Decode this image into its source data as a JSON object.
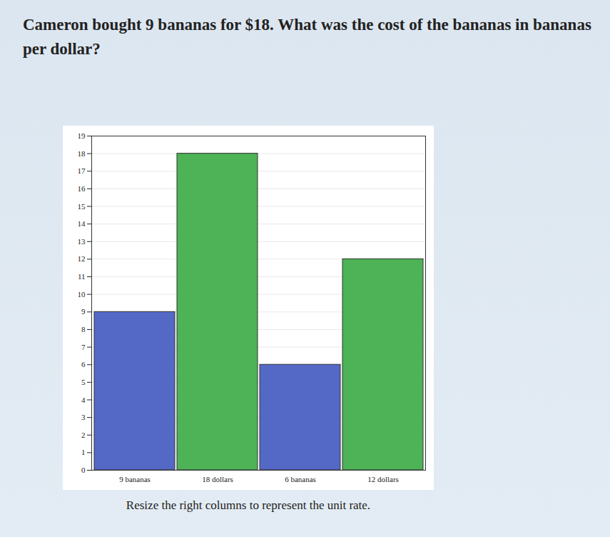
{
  "chart_data": {
    "type": "bar",
    "title": "Cameron bought 9 bananas for $18. What was the cost of the bananas in bananas per dollar?",
    "caption": "Resize the right columns to represent the unit rate.",
    "categories": [
      "9 bananas",
      "18 dollars",
      "6 bananas",
      "12 dollars"
    ],
    "values": [
      9,
      18,
      6,
      12
    ],
    "colors": [
      "#5468c6",
      "#4db356",
      "#5468c6",
      "#4db356"
    ],
    "ylim": [
      0,
      19
    ],
    "yticks": [
      0,
      1,
      2,
      3,
      4,
      5,
      6,
      7,
      8,
      9,
      10,
      11,
      12,
      13,
      14,
      15,
      16,
      17,
      18,
      19
    ],
    "grid": true
  }
}
